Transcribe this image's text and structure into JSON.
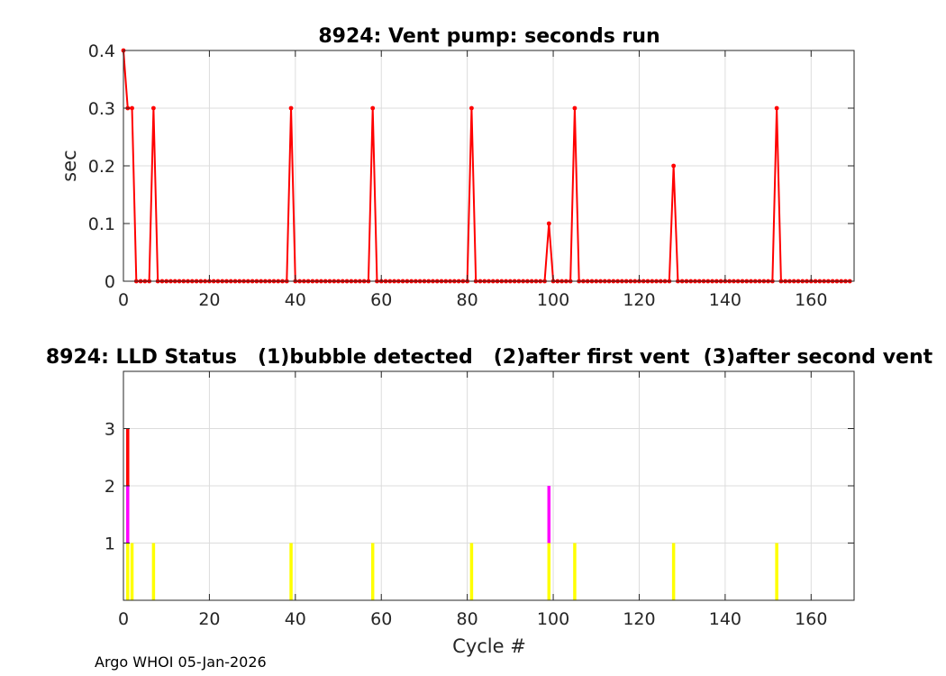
{
  "footer": "Argo WHOI 05-Jan-2026",
  "chart_data": [
    {
      "type": "line",
      "title": "8924: Vent pump: seconds run",
      "xlabel": "",
      "ylabel": "sec",
      "xlim": [
        0,
        170
      ],
      "ylim": [
        0,
        0.4
      ],
      "xticks": [
        0,
        20,
        40,
        60,
        80,
        100,
        120,
        140,
        160
      ],
      "yticks": [
        0,
        0.1,
        0.2,
        0.3,
        0.4
      ],
      "ytick_labels": [
        "0",
        "0.1",
        "0.2",
        "0.3",
        "0.4"
      ],
      "grid": true,
      "color": "#ff0000",
      "x_range": [
        0,
        169
      ],
      "default_value": 0,
      "nonzero": [
        {
          "x": 0,
          "y": 0.4
        },
        {
          "x": 1,
          "y": 0.3
        },
        {
          "x": 2,
          "y": 0.3
        },
        {
          "x": 7,
          "y": 0.3
        },
        {
          "x": 39,
          "y": 0.3
        },
        {
          "x": 58,
          "y": 0.3
        },
        {
          "x": 81,
          "y": 0.3
        },
        {
          "x": 99,
          "y": 0.1
        },
        {
          "x": 105,
          "y": 0.3
        },
        {
          "x": 128,
          "y": 0.2
        },
        {
          "x": 152,
          "y": 0.3
        }
      ]
    },
    {
      "type": "bar",
      "title": "8924: LLD Status   (1)bubble detected   (2)after first vent  (3)after second vent",
      "xlabel": "Cycle #",
      "ylabel": "",
      "xlim": [
        0,
        170
      ],
      "ylim": [
        0,
        4
      ],
      "xticks": [
        0,
        20,
        40,
        60,
        80,
        100,
        120,
        140,
        160
      ],
      "yticks": [
        1,
        2,
        3
      ],
      "ytick_labels": [
        "1",
        "2",
        "3"
      ],
      "grid": true,
      "status_colors": {
        "1": "#ffff00",
        "2": "#ff00ff",
        "3": "#ff0000"
      },
      "bars": [
        {
          "x": 1,
          "value": 3
        },
        {
          "x": 2,
          "value": 1
        },
        {
          "x": 7,
          "value": 1
        },
        {
          "x": 39,
          "value": 1
        },
        {
          "x": 58,
          "value": 1
        },
        {
          "x": 81,
          "value": 1
        },
        {
          "x": 99,
          "value": 2
        },
        {
          "x": 105,
          "value": 1
        },
        {
          "x": 128,
          "value": 1
        },
        {
          "x": 152,
          "value": 1
        }
      ]
    }
  ]
}
